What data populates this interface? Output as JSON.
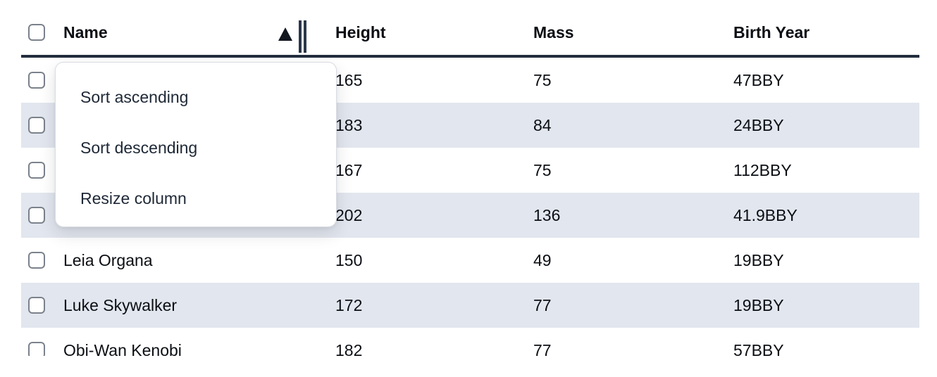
{
  "colors": {
    "row_stripe": "#e2e6ee",
    "header_border": "#222d3e",
    "text": "#0b0e13",
    "menu_text": "#1e2836",
    "menu_border": "#d9dce2",
    "checkbox_border": "#7b828c",
    "resize_handle": "#2b3648"
  },
  "icons": {
    "sort_ascending_icon": "▲",
    "column_resize_handle_icon": "‖",
    "checkbox_unchecked": "☐"
  },
  "sort": {
    "sorted_column": "Name",
    "direction": "ascending"
  },
  "context_menu": {
    "items": [
      {
        "label": "Sort ascending"
      },
      {
        "label": "Sort descending"
      },
      {
        "label": "Resize column"
      }
    ]
  },
  "table": {
    "columns": [
      {
        "label": "Name"
      },
      {
        "label": "Height"
      },
      {
        "label": "Mass"
      },
      {
        "label": "Birth Year"
      }
    ],
    "rows": [
      {
        "name": "",
        "height": "165",
        "mass": "75",
        "birth_year": "47BBY",
        "checked": false
      },
      {
        "name": "",
        "height": "183",
        "mass": "84",
        "birth_year": "24BBY",
        "checked": false
      },
      {
        "name": "",
        "height": "167",
        "mass": "75",
        "birth_year": "112BBY",
        "checked": false
      },
      {
        "name": "",
        "height": "202",
        "mass": "136",
        "birth_year": "41.9BBY",
        "checked": false
      },
      {
        "name": "Leia Organa",
        "height": "150",
        "mass": "49",
        "birth_year": "19BBY",
        "checked": false
      },
      {
        "name": "Luke Skywalker",
        "height": "172",
        "mass": "77",
        "birth_year": "19BBY",
        "checked": false
      },
      {
        "name": "Obi-Wan Kenobi",
        "height": "182",
        "mass": "77",
        "birth_year": "57BBY",
        "checked": false
      }
    ]
  }
}
